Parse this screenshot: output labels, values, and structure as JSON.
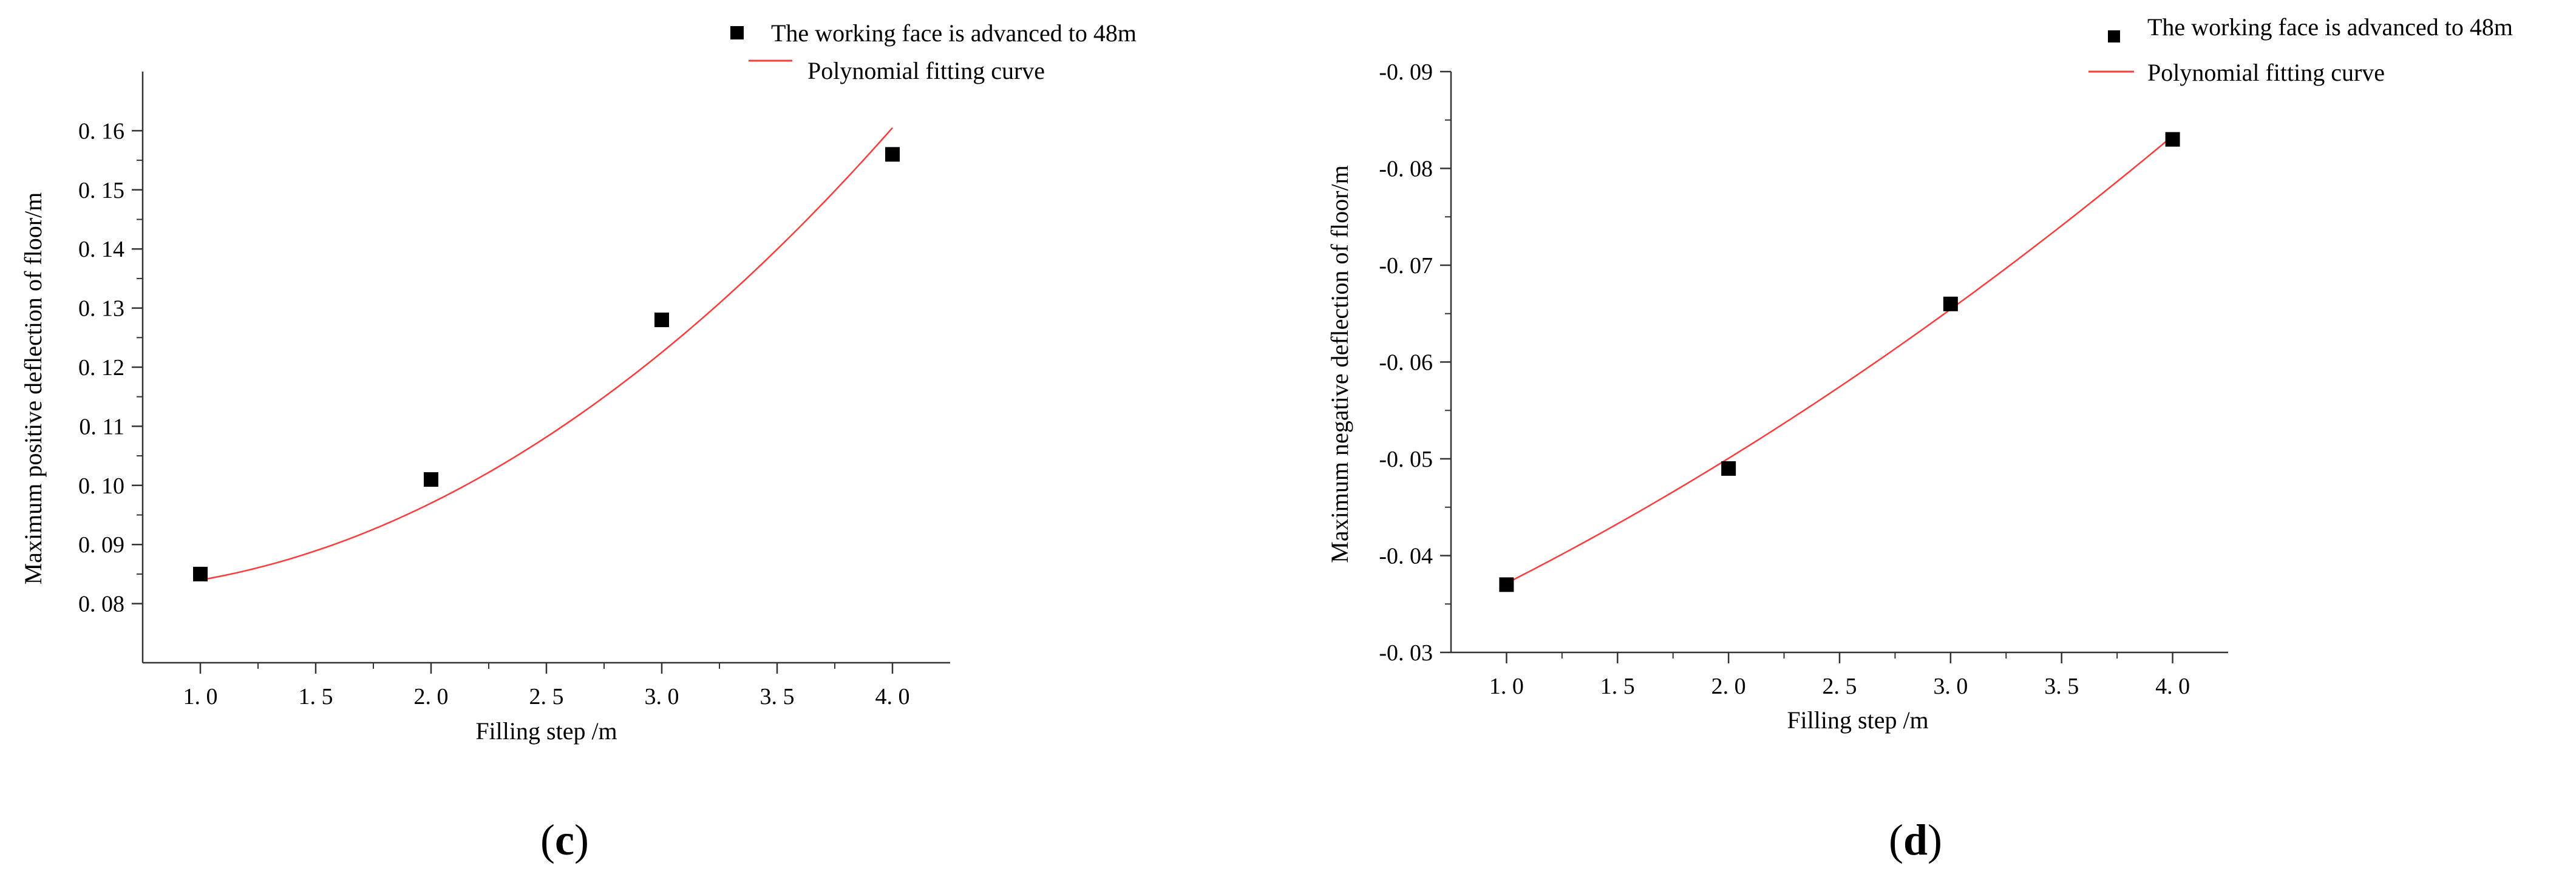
{
  "chart_data": [
    {
      "type": "scatter",
      "panel_label": {
        "open": "(",
        "letter": "c",
        "close": ")"
      },
      "title": "",
      "xlabel": "Filling step /m",
      "ylabel": "Maximum positive deflection of floor/m",
      "xlim": [
        0.75,
        4.25
      ],
      "ylim": [
        0.07,
        0.17
      ],
      "reverse_y": false,
      "x_ticks": [
        1.0,
        1.5,
        2.0,
        2.5,
        3.0,
        3.5,
        4.0
      ],
      "x_tick_labels": [
        "1. 0",
        "1. 5",
        "2. 0",
        "2. 5",
        "3. 0",
        "3. 5",
        "4. 0"
      ],
      "y_ticks": [
        0.08,
        0.09,
        0.1,
        0.11,
        0.12,
        0.13,
        0.14,
        0.15,
        0.16
      ],
      "y_tick_labels": [
        "0. 08",
        "0. 09",
        "0. 10",
        "0. 11",
        "0. 12",
        "0. 13",
        "0. 14",
        "0. 15",
        "0. 16"
      ],
      "series": [
        {
          "name": "The working face is advanced to 48m",
          "kind": "scatter",
          "color": "#000000",
          "x": [
            1.0,
            2.0,
            3.0,
            4.0
          ],
          "y": [
            0.085,
            0.101,
            0.128,
            0.156
          ]
        },
        {
          "name": "Polynomial fitting curve",
          "kind": "line",
          "color": "#ff3b3b",
          "poly": [
            0.0835,
            -0.00575,
            0.00625
          ],
          "x_range": [
            1.0,
            4.0
          ]
        }
      ],
      "legend_position": "top-right",
      "grid": false
    },
    {
      "type": "scatter",
      "panel_label": {
        "open": "(",
        "letter": "d",
        "close": ")"
      },
      "title": "",
      "xlabel": "Filling step /m",
      "ylabel": "Maximum negative deflection of floor/m",
      "xlim": [
        0.75,
        4.25
      ],
      "ylim": [
        -0.03,
        -0.09
      ],
      "reverse_y": true,
      "x_ticks": [
        1.0,
        1.5,
        2.0,
        2.5,
        3.0,
        3.5,
        4.0
      ],
      "x_tick_labels": [
        "1. 0",
        "1. 5",
        "2. 0",
        "2. 5",
        "3. 0",
        "3. 5",
        "4. 0"
      ],
      "y_ticks": [
        -0.03,
        -0.04,
        -0.05,
        -0.06,
        -0.07,
        -0.08,
        -0.09
      ],
      "y_tick_labels": [
        "-0. 03",
        "-0. 04",
        "-0. 05",
        "-0. 06",
        "-0. 07",
        "-0. 08",
        "-0. 09"
      ],
      "series": [
        {
          "name": "The working face is advanced to 48m",
          "kind": "scatter",
          "color": "#000000",
          "x": [
            1.0,
            2.0,
            3.0,
            4.0
          ],
          "y": [
            -0.037,
            -0.049,
            -0.066,
            -0.083
          ]
        },
        {
          "name": "Polynomial fitting curve",
          "kind": "line",
          "color": "#ff3b3b",
          "poly": [
            -0.02675,
            -0.00915,
            -0.00125
          ],
          "x_range": [
            1.0,
            4.0
          ]
        }
      ],
      "legend_position": "top-right",
      "grid": false
    }
  ]
}
